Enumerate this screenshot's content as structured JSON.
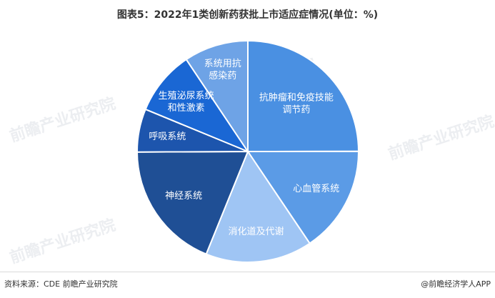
{
  "title": "图表5：2022年1类创新药获批上市适应症情况(单位：%)",
  "source": "资料来源：CDE 前瞻产业研究院",
  "credit": "@前瞻经济学人APP",
  "watermark": "前瞻产业研究院",
  "chart_data": {
    "type": "pie",
    "title": "图表5：2022年1类创新药获批上市适应症情况(单位：%)",
    "unit": "%",
    "start_angle": "12 o'clock",
    "direction": "clockwise",
    "legend": "none (labels inside slices)",
    "slices": [
      {
        "label_lines": [
          "抗肿瘤和免疫技能",
          "调节药"
        ],
        "value": 25.0,
        "color": "#4a90e2"
      },
      {
        "label_lines": [
          "心血管系统"
        ],
        "value": 15.6,
        "color": "#5b9be6"
      },
      {
        "label_lines": [
          "消化道及代谢"
        ],
        "value": 15.6,
        "color": "#9fc5f4"
      },
      {
        "label_lines": [
          "神经系统"
        ],
        "value": 18.8,
        "color": "#1f4f95"
      },
      {
        "label_lines": [
          "呼吸系统"
        ],
        "value": 6.3,
        "color": "#1d55ad"
      },
      {
        "label_lines": [
          "生殖泌尿系统",
          "和性激素"
        ],
        "value": 9.4,
        "color": "#1a67d4"
      },
      {
        "label_lines": [
          "系统用抗",
          "感染药"
        ],
        "value": 9.4,
        "color": "#6ea3e6"
      }
    ]
  }
}
